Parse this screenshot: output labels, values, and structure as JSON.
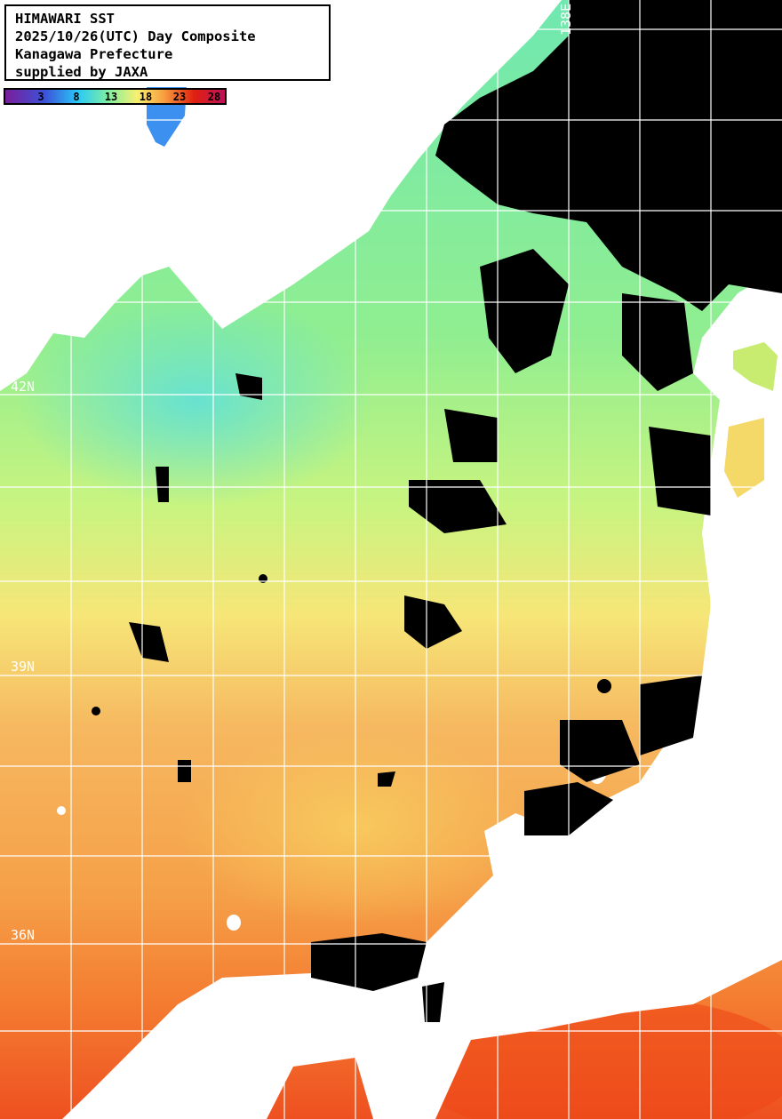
{
  "header": {
    "title": "HIMAWARI SST",
    "date_line": "2025/10/26(UTC) Day Composite",
    "region": "Kanagawa Prefecture",
    "credit": "supplied by JAXA"
  },
  "colorbar": {
    "ticks": [
      "3",
      "8",
      "13",
      "18",
      "23",
      "28"
    ],
    "colors": [
      "#7a1e9a",
      "#3c52d8",
      "#28c8f8",
      "#80f0a0",
      "#f8f070",
      "#f8a040",
      "#e02010",
      "#c0105a"
    ]
  },
  "grid_labels": {
    "lat_42": "42N",
    "lat_39": "39N",
    "lat_36": "36N",
    "lon_138": "138E"
  },
  "colors": {
    "land": "#ffffff",
    "cloud": "#000000",
    "grid": "#ffffff"
  }
}
